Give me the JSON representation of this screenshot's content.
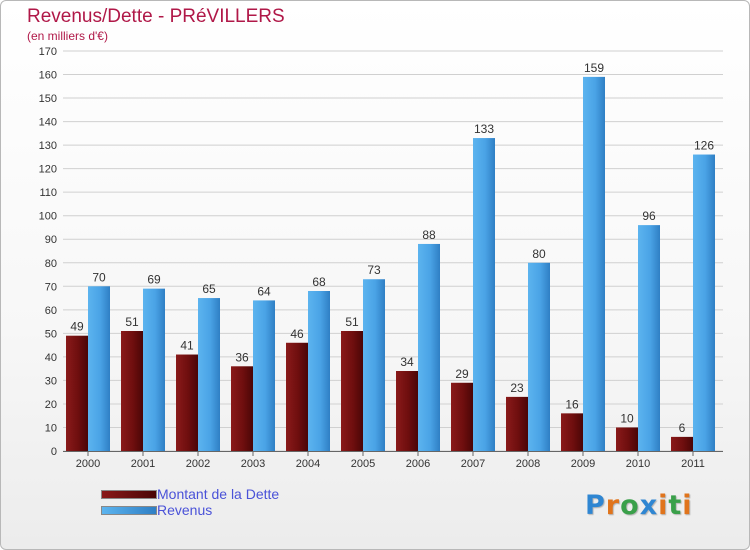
{
  "chart_data": {
    "type": "bar",
    "title": "Revenus/Dette - PRéVILLERS",
    "subtitle": "(en milliers d'€)",
    "categories": [
      "2000",
      "2001",
      "2002",
      "2003",
      "2004",
      "2005",
      "2006",
      "2007",
      "2008",
      "2009",
      "2010",
      "2011"
    ],
    "series": [
      {
        "name": "Montant de la Dette",
        "color": "#7a1010",
        "values": [
          49,
          51,
          41,
          36,
          46,
          51,
          34,
          29,
          23,
          16,
          10,
          6
        ]
      },
      {
        "name": "Revenus",
        "color": "#4aa3e6",
        "values": [
          70,
          69,
          65,
          64,
          68,
          73,
          88,
          133,
          80,
          159,
          96,
          126
        ]
      }
    ],
    "ylim": [
      0,
      170
    ],
    "ytick_step": 10,
    "grid": true,
    "data_labels": true,
    "legend": "bottom-left"
  },
  "logo": {
    "text": "Proxiti",
    "letter_colors": [
      "#2f86d2",
      "#e0741c",
      "#3aa04a",
      "#2f86d2",
      "#e0741c",
      "#3aa04a",
      "#e0741c"
    ]
  }
}
